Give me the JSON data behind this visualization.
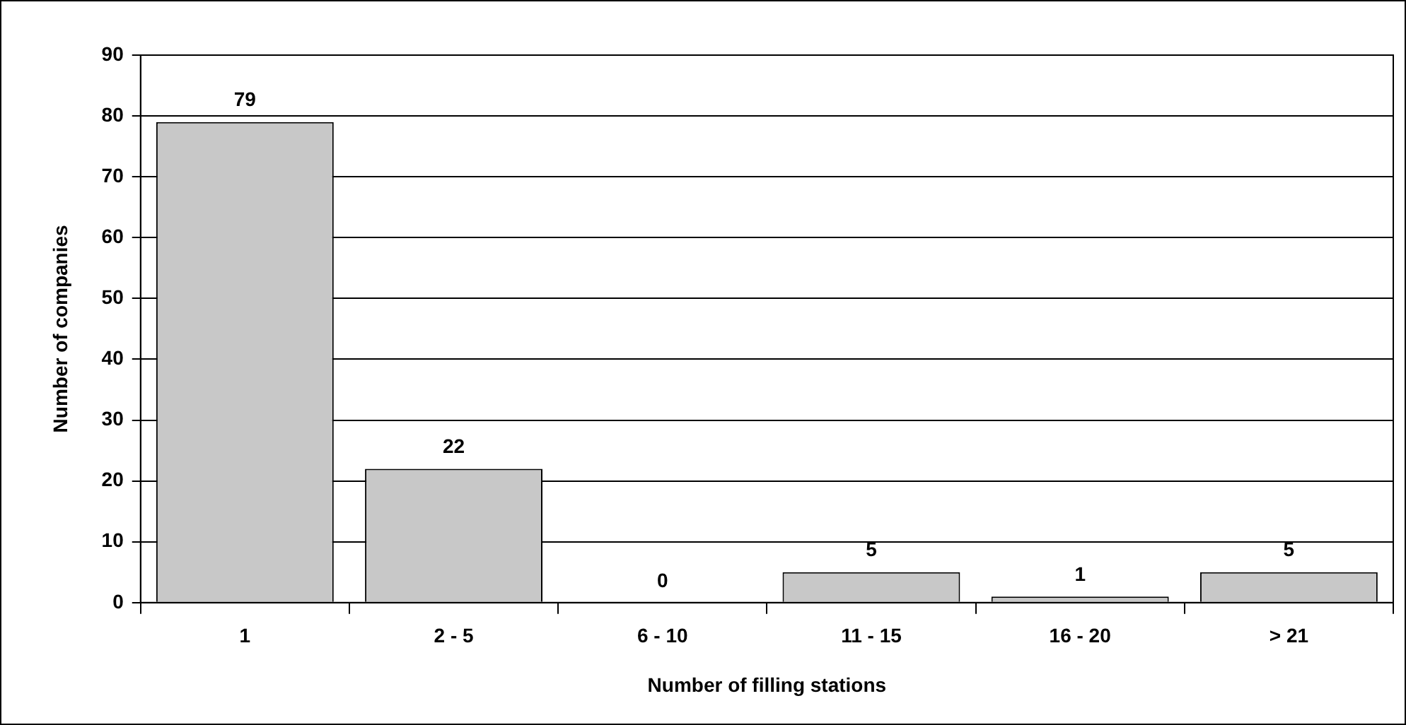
{
  "chart_data": {
    "type": "bar",
    "xlabel": "Number of filling stations",
    "ylabel": "Number of companies",
    "categories": [
      "1",
      "2 - 5",
      "6 - 10",
      "11 - 15",
      "16 - 20",
      "> 21"
    ],
    "values": [
      79,
      22,
      0,
      5,
      1,
      5
    ],
    "color": "#c8c8c8",
    "ylim": [
      0,
      90
    ],
    "yticks": [
      0,
      10,
      20,
      30,
      40,
      50,
      60,
      70,
      80,
      90
    ],
    "grid": "y",
    "data_labels": true
  }
}
